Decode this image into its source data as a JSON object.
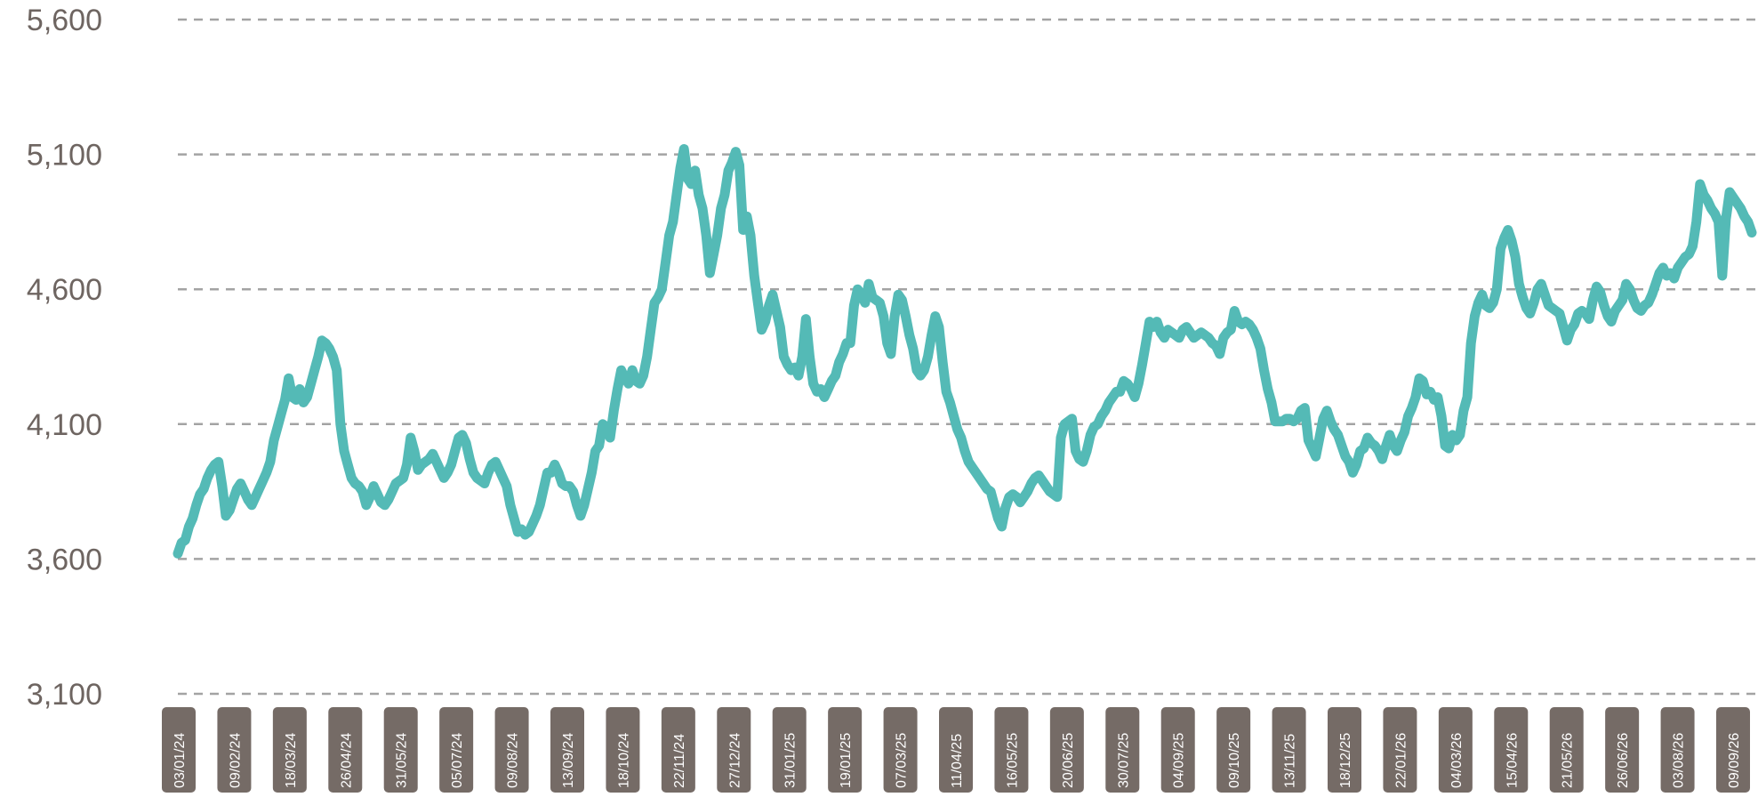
{
  "colors": {
    "line": "#54bab6",
    "grid": "#a3a3a3",
    "tick_text": "#6e6561",
    "label_bg": "#756b66",
    "label_text": "#ffffff"
  },
  "chart_data": {
    "type": "line",
    "title": "",
    "xlabel": "",
    "ylabel": "",
    "ylim": [
      3100,
      5600
    ],
    "y_ticks": [
      "5,600",
      "5,100",
      "4,600",
      "4,100",
      "3,600",
      "3,100"
    ],
    "y_tick_values": [
      5600,
      5100,
      4600,
      4100,
      3600,
      3100
    ],
    "grid": "horizontal-dashed",
    "x_tick_labels": [
      "03/01/24",
      "09/02/24",
      "18/03/24",
      "26/04/24",
      "31/05/24",
      "05/07/24",
      "09/08/24",
      "13/09/24",
      "18/10/24",
      "22/11/24",
      "27/12/24",
      "31/01/25",
      "19/01/25",
      "07/03/25",
      "11/04/25",
      "16/05/25",
      "20/06/25",
      "30/07/25",
      "04/09/25",
      "09/10/25",
      "13/11/25",
      "18/12/25",
      "22/01/26",
      "04/03/26",
      "15/04/26",
      "21/05/26",
      "26/06/26",
      "03/08/26",
      "09/09/26"
    ],
    "series": [
      {
        "values": [
          3620,
          3660,
          3670,
          3720,
          3750,
          3800,
          3840,
          3860,
          3900,
          3930,
          3950,
          3960,
          3870,
          3760,
          3780,
          3820,
          3860,
          3880,
          3850,
          3820,
          3800,
          3830,
          3860,
          3890,
          3920,
          3960,
          4040,
          4090,
          4140,
          4190,
          4270,
          4200,
          4190,
          4230,
          4180,
          4200,
          4250,
          4300,
          4350,
          4410,
          4400,
          4380,
          4350,
          4300,
          4100,
          4000,
          3950,
          3900,
          3880,
          3870,
          3850,
          3800,
          3830,
          3870,
          3840,
          3810,
          3800,
          3820,
          3850,
          3880,
          3890,
          3900,
          3950,
          4050,
          4000,
          3930,
          3950,
          3960,
          3970,
          3990,
          3960,
          3930,
          3900,
          3920,
          3950,
          4000,
          4050,
          4060,
          4030,
          3970,
          3920,
          3900,
          3890,
          3880,
          3920,
          3950,
          3960,
          3930,
          3900,
          3870,
          3800,
          3750,
          3700,
          3710,
          3690,
          3700,
          3730,
          3760,
          3800,
          3860,
          3920,
          3920,
          3950,
          3920,
          3880,
          3870,
          3870,
          3850,
          3800,
          3760,
          3800,
          3860,
          3920,
          4000,
          4020,
          4100,
          4090,
          4050,
          4150,
          4230,
          4300,
          4270,
          4250,
          4300,
          4260,
          4250,
          4280,
          4350,
          4450,
          4550,
          4570,
          4600,
          4700,
          4800,
          4850,
          4950,
          5050,
          5120,
          5010,
          4990,
          5040,
          4950,
          4900,
          4800,
          4660,
          4730,
          4800,
          4900,
          4950,
          5040,
          5070,
          5110,
          5060,
          4820,
          4870,
          4800,
          4650,
          4550,
          4450,
          4480,
          4540,
          4580,
          4520,
          4460,
          4350,
          4320,
          4300,
          4310,
          4280,
          4350,
          4490,
          4350,
          4250,
          4220,
          4230,
          4200,
          4230,
          4260,
          4280,
          4330,
          4360,
          4400,
          4400,
          4540,
          4600,
          4580,
          4550,
          4620,
          4570,
          4560,
          4550,
          4500,
          4400,
          4360,
          4500,
          4580,
          4560,
          4500,
          4430,
          4380,
          4300,
          4280,
          4300,
          4350,
          4430,
          4500,
          4460,
          4330,
          4220,
          4180,
          4130,
          4080,
          4050,
          4000,
          3960,
          3940,
          3920,
          3900,
          3880,
          3860,
          3850,
          3800,
          3750,
          3720,
          3790,
          3830,
          3840,
          3830,
          3810,
          3830,
          3850,
          3880,
          3900,
          3910,
          3890,
          3870,
          3850,
          3840,
          3830,
          4050,
          4100,
          4110,
          4120,
          4000,
          3970,
          3960,
          4000,
          4060,
          4090,
          4100,
          4130,
          4150,
          4180,
          4200,
          4220,
          4220,
          4260,
          4250,
          4230,
          4200,
          4250,
          4320,
          4400,
          4480,
          4460,
          4480,
          4440,
          4420,
          4450,
          4440,
          4430,
          4420,
          4450,
          4460,
          4440,
          4420,
          4430,
          4440,
          4430,
          4420,
          4400,
          4390,
          4360,
          4420,
          4440,
          4450,
          4520,
          4480,
          4470,
          4480,
          4470,
          4450,
          4420,
          4380,
          4300,
          4230,
          4180,
          4110,
          4110,
          4110,
          4120,
          4120,
          4110,
          4120,
          4150,
          4160,
          4040,
          4010,
          3980,
          4050,
          4120,
          4150,
          4110,
          4080,
          4060,
          4020,
          3980,
          3960,
          3920,
          3950,
          4000,
          4010,
          4050,
          4030,
          4020,
          4000,
          3970,
          4020,
          4060,
          4020,
          4000,
          4040,
          4070,
          4130,
          4160,
          4200,
          4270,
          4260,
          4210,
          4220,
          4190,
          4200,
          4130,
          4020,
          4010,
          4060,
          4040,
          4060,
          4150,
          4200,
          4400,
          4500,
          4550,
          4580,
          4540,
          4530,
          4550,
          4600,
          4750,
          4790,
          4820,
          4780,
          4720,
          4620,
          4570,
          4530,
          4510,
          4550,
          4600,
          4620,
          4580,
          4540,
          4530,
          4520,
          4510,
          4460,
          4410,
          4450,
          4470,
          4510,
          4520,
          4510,
          4490,
          4560,
          4610,
          4590,
          4540,
          4500,
          4480,
          4520,
          4540,
          4560,
          4620,
          4600,
          4560,
          4530,
          4520,
          4540,
          4550,
          4580,
          4620,
          4660,
          4680,
          4650,
          4660,
          4640,
          4680,
          4700,
          4720,
          4730,
          4760,
          4850,
          4990,
          4950,
          4930,
          4900,
          4880,
          4850,
          4650,
          4860,
          4960,
          4940,
          4920,
          4900,
          4870,
          4850,
          4810
        ]
      }
    ]
  }
}
